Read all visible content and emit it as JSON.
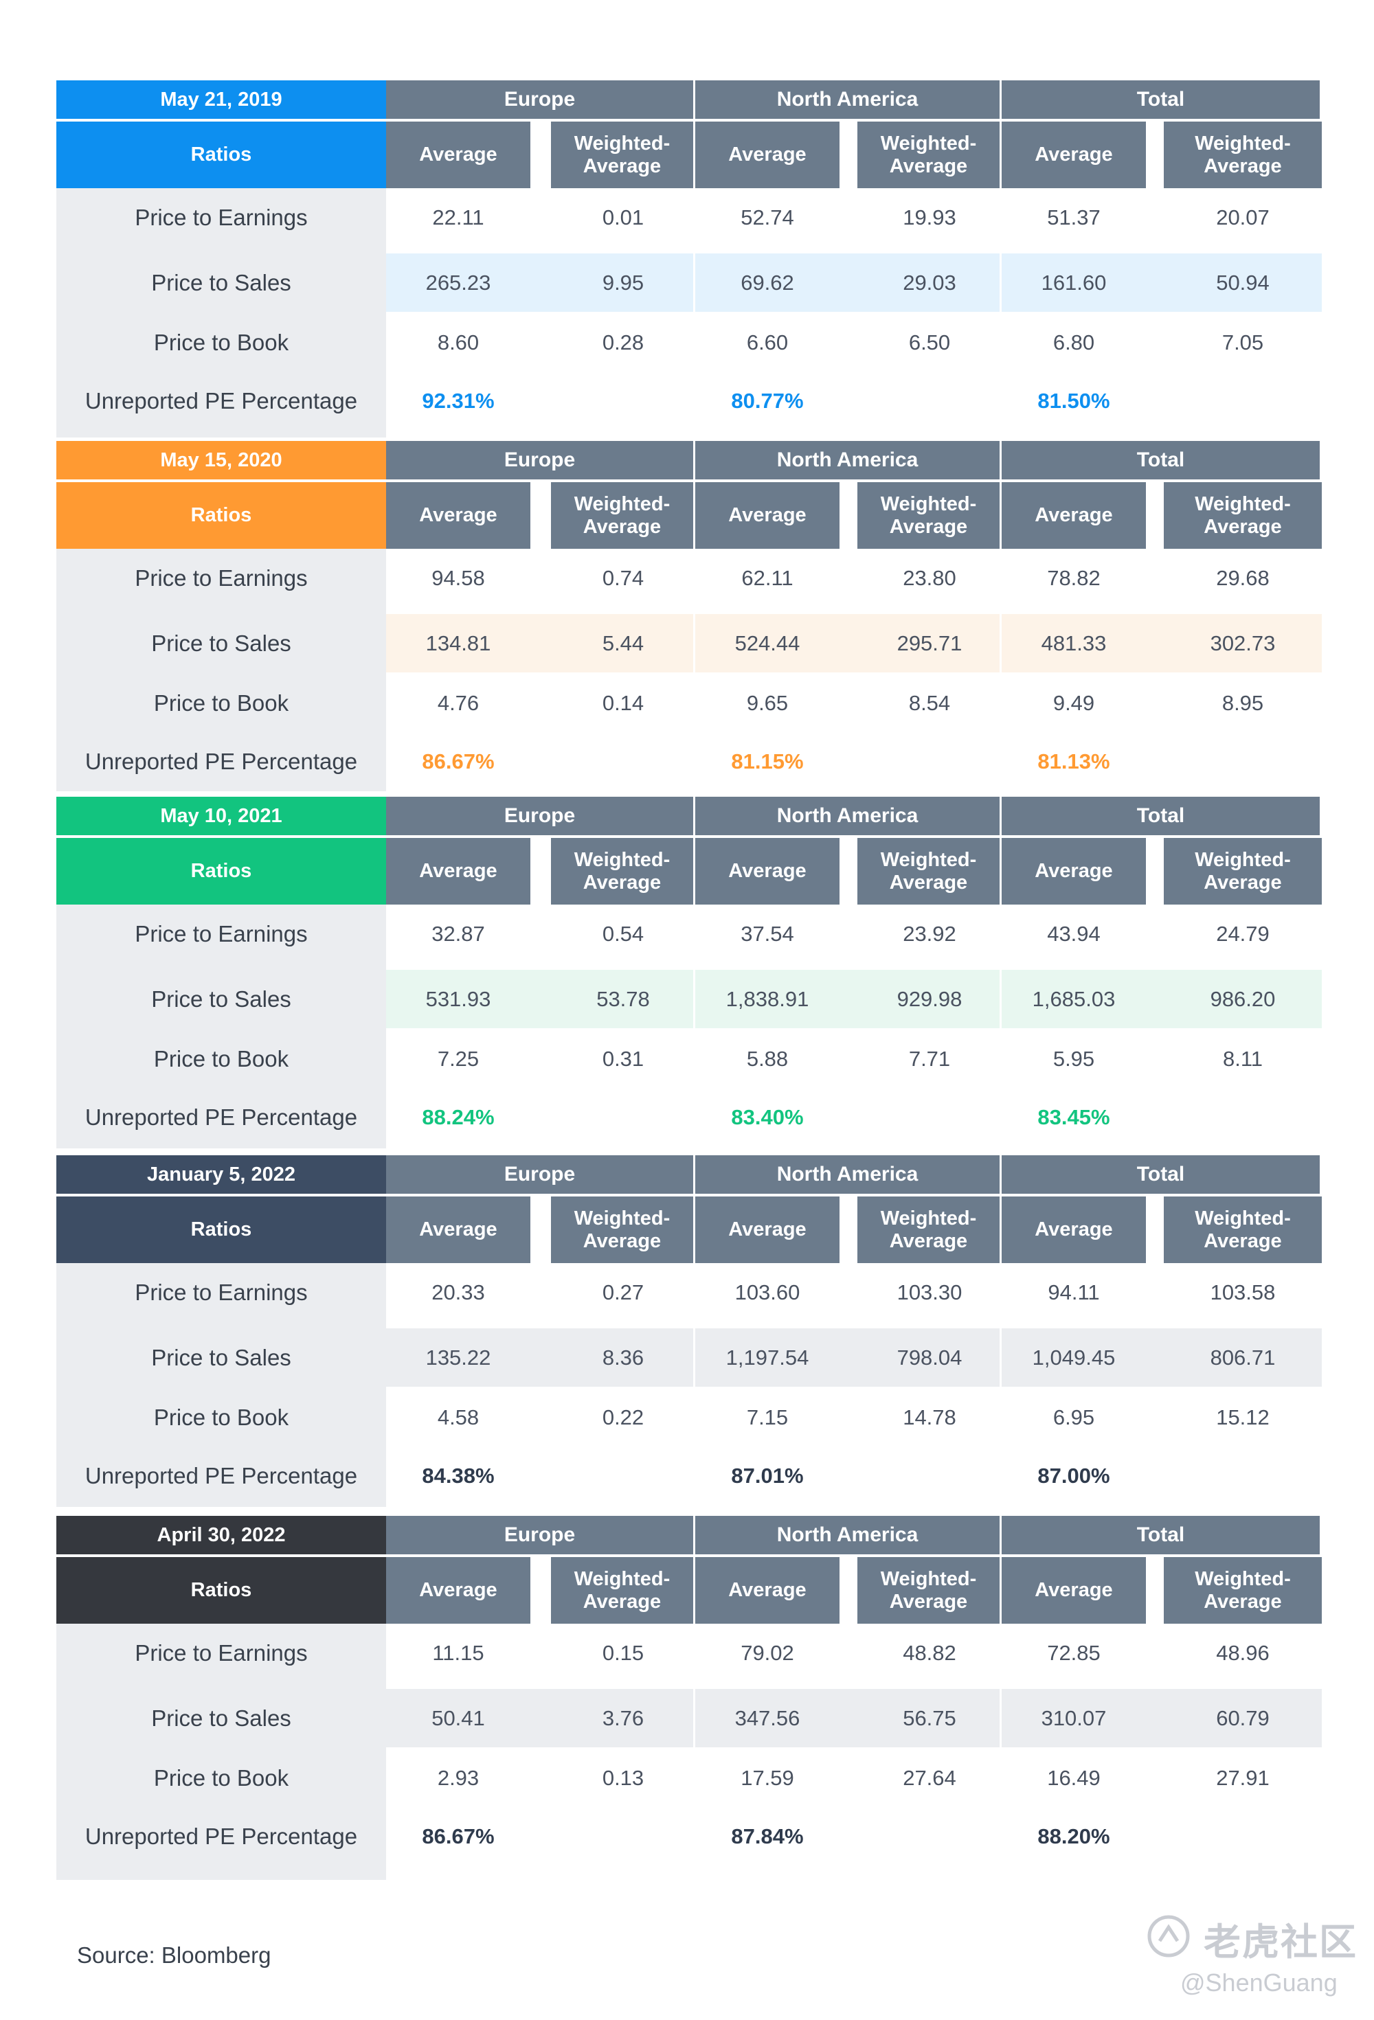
{
  "columns": {
    "ratios_label": "Ratios",
    "regions": [
      "Europe",
      "North America",
      "Total"
    ],
    "average_label": "Average",
    "weighted_label": "Weighted-Average",
    "row_labels": [
      "Price to Earnings",
      "Price to Sales",
      "Price to Book",
      "Unreported PE Percentage"
    ]
  },
  "tables": [
    {
      "date": "May 21, 2019",
      "accent": "#0d8ff0",
      "stripe": "#e3f2fd",
      "rows": [
        [
          "22.11",
          "0.01",
          "52.74",
          "19.93",
          "51.37",
          "20.07"
        ],
        [
          "265.23",
          "9.95",
          "69.62",
          "29.03",
          "161.60",
          "50.94"
        ],
        [
          "8.60",
          "0.28",
          "6.60",
          "6.50",
          "6.80",
          "7.05"
        ]
      ],
      "unreported": [
        "92.31%",
        "80.77%",
        "81.50%"
      ]
    },
    {
      "date": "May 15, 2020",
      "accent": "#ff9a32",
      "stripe": "#fdf3e8",
      "rows": [
        [
          "94.58",
          "0.74",
          "62.11",
          "23.80",
          "78.82",
          "29.68"
        ],
        [
          "134.81",
          "5.44",
          "524.44",
          "295.71",
          "481.33",
          "302.73"
        ],
        [
          "4.76",
          "0.14",
          "9.65",
          "8.54",
          "9.49",
          "8.95"
        ]
      ],
      "unreported": [
        "86.67%",
        "81.15%",
        "81.13%"
      ]
    },
    {
      "date": "May 10, 2021",
      "accent": "#12c47f",
      "stripe": "#e8f7f0",
      "rows": [
        [
          "32.87",
          "0.54",
          "37.54",
          "23.92",
          "43.94",
          "24.79"
        ],
        [
          "531.93",
          "53.78",
          "1,838.91",
          "929.98",
          "1,685.03",
          "986.20"
        ],
        [
          "7.25",
          "0.31",
          "5.88",
          "7.71",
          "5.95",
          "8.11"
        ]
      ],
      "unreported": [
        "88.24%",
        "83.40%",
        "83.45%"
      ]
    },
    {
      "date": "January 5, 2022",
      "accent": "#3d4d64",
      "stripe": "#ebedf0",
      "rows": [
        [
          "20.33",
          "0.27",
          "103.60",
          "103.30",
          "94.11",
          "103.58"
        ],
        [
          "135.22",
          "8.36",
          "1,197.54",
          "798.04",
          "1,049.45",
          "806.71"
        ],
        [
          "4.58",
          "0.22",
          "7.15",
          "14.78",
          "6.95",
          "15.12"
        ]
      ],
      "unreported": [
        "84.38%",
        "87.01%",
        "87.00%"
      ]
    },
    {
      "date": "April 30, 2022",
      "accent": "#35383e",
      "stripe": "#ebedf0",
      "rows": [
        [
          "11.15",
          "0.15",
          "79.02",
          "48.82",
          "72.85",
          "48.96"
        ],
        [
          "50.41",
          "3.76",
          "347.56",
          "56.75",
          "310.07",
          "60.79"
        ],
        [
          "2.93",
          "0.13",
          "17.59",
          "27.64",
          "16.49",
          "27.91"
        ]
      ],
      "unreported": [
        "86.67%",
        "87.84%",
        "88.20%"
      ]
    }
  ],
  "source": "Source: Bloomberg",
  "watermark": {
    "brand": "老虎社区",
    "handle": "@ShenGuang"
  }
}
